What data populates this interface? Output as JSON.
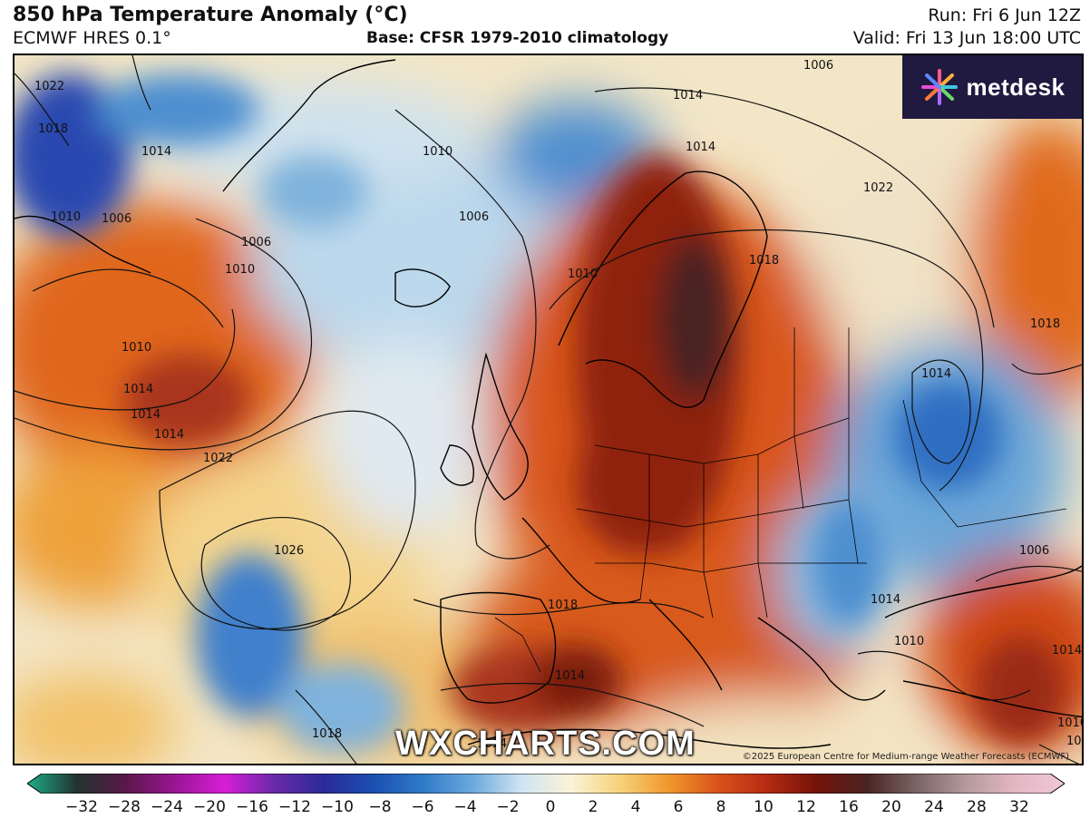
{
  "header": {
    "title": "850 hPa Temperature Anomaly (°C)",
    "model": "ECMWF HRES 0.1°",
    "base": "Base: CFSR 1979-2010 climatology",
    "run": "Run: Fri 6 Jun 12Z",
    "valid": "Valid: Fri 13 Jun 18:00 UTC"
  },
  "logo": {
    "text": "metdesk"
  },
  "watermark": "WXCHARTS.COM",
  "copyright": "©2025 European Centre for Medium-range Weather Forecasts (ECMWF)",
  "isobar_labels": [
    "1022",
    "1014",
    "1018",
    "1010",
    "1006",
    "1014",
    "1010",
    "1014",
    "1006",
    "1010",
    "1006",
    "1010",
    "1014",
    "1022",
    "1026",
    "1018",
    "1022",
    "1010",
    "1018",
    "1014",
    "1022",
    "1018",
    "1014",
    "1014",
    "1018",
    "1014",
    "1010",
    "1006",
    "1014",
    "1010",
    "1006",
    "1014",
    "1006",
    "1014"
  ],
  "colorbar": {
    "ticks": [
      "−32",
      "−28",
      "−24",
      "−20",
      "−16",
      "−12",
      "−10",
      "−8",
      "−6",
      "−4",
      "−2",
      "0",
      "2",
      "4",
      "6",
      "8",
      "10",
      "12",
      "16",
      "20",
      "24",
      "28",
      "32"
    ],
    "stops": [
      "#1fae8a",
      "#22332e",
      "#5a1848",
      "#9a1595",
      "#d61ed6",
      "#6a2aa8",
      "#2c2a9a",
      "#1b4fb0",
      "#2f7ac8",
      "#6aa8dc",
      "#cfe4f2",
      "#fbf3d8",
      "#f6d27a",
      "#f0962a",
      "#d8521c",
      "#b32a12",
      "#731208",
      "#4a2424",
      "#7a6464",
      "#b49a9a",
      "#e4b6c4",
      "#f0c8d8"
    ]
  },
  "colors": {
    "warm_core": "#7a1a0c",
    "cold_core": "#2e6ec2",
    "logo_bg": "#201a40"
  }
}
